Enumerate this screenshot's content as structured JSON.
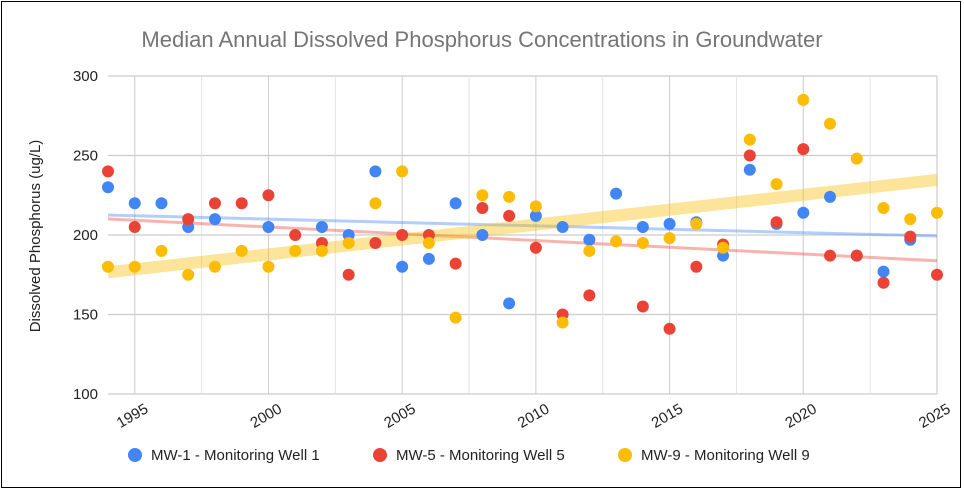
{
  "chart_data": {
    "type": "scatter",
    "title": "Median Annual Dissolved Phosphorus Concentrations in Groundwater",
    "xlabel": "",
    "ylabel": "Dissolved Phosphorus (ug/L)",
    "xlim": [
      1994,
      2025
    ],
    "ylim": [
      100,
      300
    ],
    "x_ticks": [
      "1995",
      "2000",
      "2005",
      "2010",
      "2015",
      "2020",
      "2025"
    ],
    "y_ticks": [
      "100",
      "150",
      "200",
      "250",
      "300"
    ],
    "grid": true,
    "legend": "bottom",
    "trendlines": "linear",
    "series": [
      {
        "name": "MW-1 - Monitoring Well 1",
        "color": "#4285F4",
        "points": [
          [
            1994,
            230
          ],
          [
            1995,
            220
          ],
          [
            1996,
            220
          ],
          [
            1997,
            205
          ],
          [
            1998,
            210
          ],
          [
            2000,
            205
          ],
          [
            2002,
            205
          ],
          [
            2003,
            200
          ],
          [
            2004,
            240
          ],
          [
            2005,
            180
          ],
          [
            2006,
            185
          ],
          [
            2007,
            220
          ],
          [
            2008,
            200
          ],
          [
            2009,
            157
          ],
          [
            2010,
            212
          ],
          [
            2011,
            205
          ],
          [
            2012,
            197
          ],
          [
            2013,
            226
          ],
          [
            2014,
            205
          ],
          [
            2015,
            207
          ],
          [
            2016,
            208
          ],
          [
            2017,
            187
          ],
          [
            2018,
            241
          ],
          [
            2019,
            207
          ],
          [
            2020,
            214
          ],
          [
            2021,
            224
          ],
          [
            2022,
            187
          ],
          [
            2023,
            177
          ],
          [
            2024,
            197
          ]
        ]
      },
      {
        "name": "MW-5 - Monitoring Well 5",
        "color": "#EA4335",
        "points": [
          [
            1994,
            240
          ],
          [
            1995,
            205
          ],
          [
            1997,
            210
          ],
          [
            1998,
            220
          ],
          [
            1999,
            220
          ],
          [
            2000,
            225
          ],
          [
            2001,
            200
          ],
          [
            2002,
            195
          ],
          [
            2003,
            175
          ],
          [
            2004,
            195
          ],
          [
            2005,
            200
          ],
          [
            2006,
            200
          ],
          [
            2007,
            182
          ],
          [
            2008,
            217
          ],
          [
            2009,
            212
          ],
          [
            2010,
            192
          ],
          [
            2011,
            150
          ],
          [
            2012,
            162
          ],
          [
            2014,
            155
          ],
          [
            2015,
            141
          ],
          [
            2016,
            180
          ],
          [
            2017,
            194
          ],
          [
            2018,
            250
          ],
          [
            2019,
            208
          ],
          [
            2020,
            254
          ],
          [
            2021,
            187
          ],
          [
            2022,
            187
          ],
          [
            2023,
            170
          ],
          [
            2024,
            199
          ],
          [
            2025,
            175
          ]
        ]
      },
      {
        "name": "MW-9 - Monitoring Well 9",
        "color": "#FBBC04",
        "points": [
          [
            1994,
            180
          ],
          [
            1995,
            180
          ],
          [
            1996,
            190
          ],
          [
            1997,
            175
          ],
          [
            1998,
            180
          ],
          [
            1999,
            190
          ],
          [
            2000,
            180
          ],
          [
            2001,
            190
          ],
          [
            2002,
            190
          ],
          [
            2003,
            195
          ],
          [
            2004,
            220
          ],
          [
            2005,
            240
          ],
          [
            2006,
            195
          ],
          [
            2007,
            148
          ],
          [
            2008,
            225
          ],
          [
            2009,
            224
          ],
          [
            2010,
            218
          ],
          [
            2011,
            145
          ],
          [
            2012,
            190
          ],
          [
            2013,
            196
          ],
          [
            2014,
            195
          ],
          [
            2015,
            198
          ],
          [
            2016,
            207
          ],
          [
            2017,
            192
          ],
          [
            2018,
            260
          ],
          [
            2019,
            232
          ],
          [
            2020,
            285
          ],
          [
            2021,
            270
          ],
          [
            2022,
            248
          ],
          [
            2023,
            217
          ],
          [
            2024,
            210
          ],
          [
            2025,
            214
          ]
        ]
      }
    ]
  }
}
